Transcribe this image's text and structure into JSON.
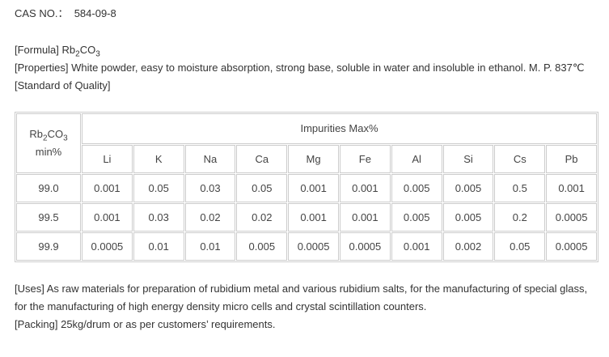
{
  "cas": {
    "label": "CAS NO.：",
    "value": "584-09-8"
  },
  "formula": {
    "label": "[Formula]",
    "parts": [
      "Rb",
      "2",
      "CO",
      "3"
    ]
  },
  "properties": "[Properties] White powder, easy to moisture absorption, strong base, soluble in water and insoluble in ethanol. M. P. 837℃",
  "standard": "[Standard of Quality]",
  "table": {
    "main_header": {
      "parts": [
        "Rb",
        "2",
        "CO",
        "3"
      ],
      "unit": "min%"
    },
    "group_header": "Impurities Max%",
    "elements": [
      "Li",
      "K",
      "Na",
      "Ca",
      "Mg",
      "Fe",
      "Al",
      "Si",
      "Cs",
      "Pb"
    ],
    "rows": [
      [
        "99.0",
        "0.001",
        "0.05",
        "0.03",
        "0.05",
        "0.001",
        "0.001",
        "0.005",
        "0.005",
        "0.5",
        "0.001"
      ],
      [
        "99.5",
        "0.001",
        "0.03",
        "0.02",
        "0.02",
        "0.001",
        "0.001",
        "0.005",
        "0.005",
        "0.2",
        "0.0005"
      ],
      [
        "99.9",
        "0.0005",
        "0.01",
        "0.01",
        "0.005",
        "0.0005",
        "0.0005",
        "0.001",
        "0.002",
        "0.05",
        "0.0005"
      ]
    ]
  },
  "uses": "[Uses] As raw materials for preparation of rubidium metal and various rubidium salts, for the manufacturing of special glass, for the manufacturing of high energy density micro cells and crystal scintillation counters.",
  "packing": "[Packing] 25kg/drum or as per customers’ requirements."
}
